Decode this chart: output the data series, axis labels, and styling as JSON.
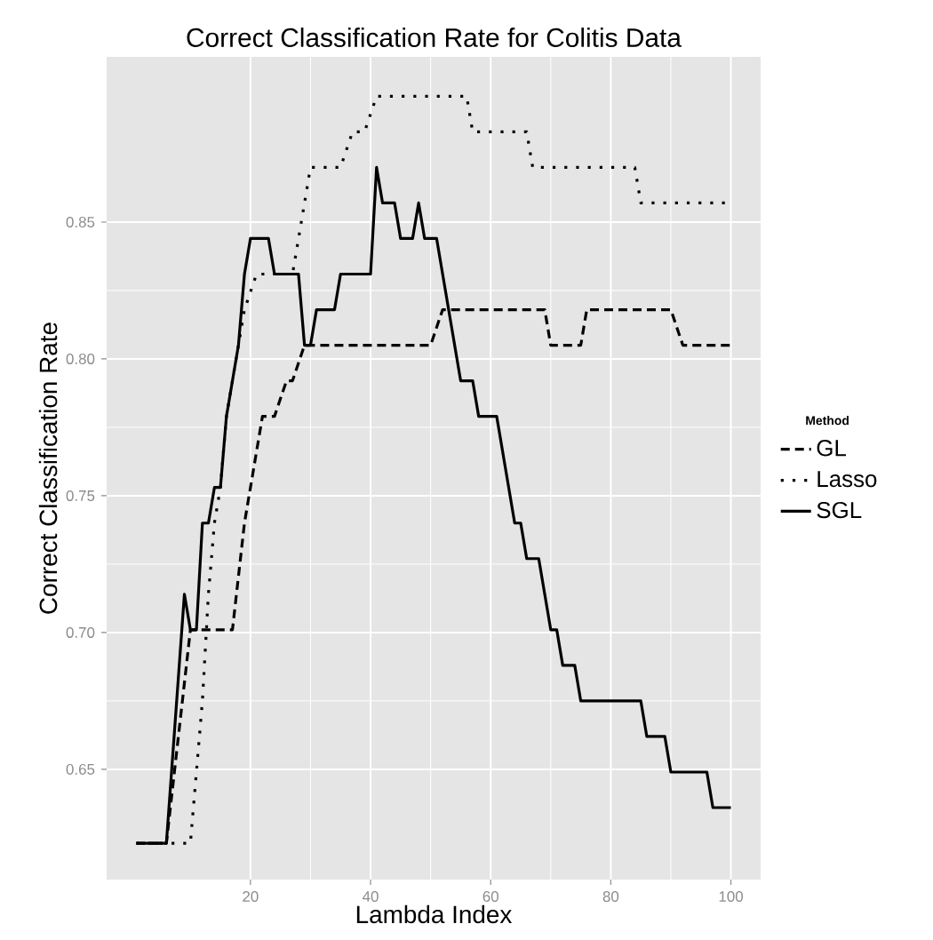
{
  "chart_data": {
    "type": "line",
    "title": "Correct Classification Rate for Colitis Data",
    "xlabel": "Lambda Index",
    "ylabel": "Correct Classification Rate",
    "legend_title": "Method",
    "xlim": [
      -3.95,
      104.95
    ],
    "xticks": [
      20,
      40,
      60,
      80,
      100
    ],
    "ylim": [
      0.6097,
      0.9104
    ],
    "yticks": [
      0.65,
      {
        "value": 0.7,
        "label": "0.70"
      },
      0.75,
      {
        "value": 0.8,
        "label": "0.80"
      },
      0.85
    ],
    "grid": true,
    "legend": "right",
    "series": [
      {
        "name": "GL",
        "color": "#000000",
        "line_style": "dashed",
        "x": [
          1,
          6,
          10,
          17,
          19,
          20,
          22,
          24,
          26,
          27,
          29,
          50,
          52,
          69,
          70,
          75,
          76,
          90,
          92,
          100
        ],
        "values": [
          0.623,
          0.623,
          0.701,
          0.701,
          0.74,
          0.753,
          0.779,
          0.779,
          0.792,
          0.792,
          0.805,
          0.805,
          0.818,
          0.818,
          0.805,
          0.805,
          0.818,
          0.818,
          0.805,
          0.805
        ]
      },
      {
        "name": "Lasso",
        "color": "#000000",
        "line_style": "dotted",
        "x": [
          1,
          10,
          11,
          12,
          13,
          14,
          15,
          16,
          17,
          18,
          19,
          21,
          27,
          28,
          29,
          30,
          35,
          37,
          39,
          41,
          56,
          57,
          66,
          67,
          84,
          85,
          100
        ],
        "values": [
          0.623,
          0.623,
          0.649,
          0.675,
          0.714,
          0.74,
          0.753,
          0.779,
          0.792,
          0.805,
          0.818,
          0.831,
          0.831,
          0.844,
          0.857,
          0.87,
          0.87,
          0.883,
          0.883,
          0.896,
          0.896,
          0.883,
          0.883,
          0.87,
          0.87,
          0.857,
          0.857
        ]
      },
      {
        "name": "SGL",
        "color": "#000000",
        "line_style": "solid",
        "x": [
          1,
          6,
          9,
          10,
          11,
          12,
          13,
          14,
          15,
          16,
          17,
          18,
          19,
          20,
          23,
          24,
          28,
          29,
          30,
          31,
          34,
          35,
          40,
          41,
          42,
          44,
          45,
          47,
          48,
          49,
          51,
          53,
          55,
          57,
          58,
          61,
          64,
          65,
          66,
          68,
          70,
          71,
          72,
          74,
          75,
          85,
          86,
          89,
          90,
          96,
          97,
          100
        ],
        "values": [
          0.623,
          0.623,
          0.714,
          0.701,
          0.701,
          0.74,
          0.74,
          0.753,
          0.753,
          0.779,
          0.792,
          0.805,
          0.831,
          0.844,
          0.844,
          0.831,
          0.831,
          0.805,
          0.805,
          0.818,
          0.818,
          0.831,
          0.831,
          0.87,
          0.857,
          0.857,
          0.844,
          0.844,
          0.857,
          0.844,
          0.844,
          0.818,
          0.792,
          0.792,
          0.779,
          0.779,
          0.74,
          0.74,
          0.727,
          0.727,
          0.701,
          0.701,
          0.688,
          0.688,
          0.675,
          0.675,
          0.662,
          0.662,
          0.649,
          0.649,
          0.636,
          0.636
        ]
      }
    ]
  }
}
